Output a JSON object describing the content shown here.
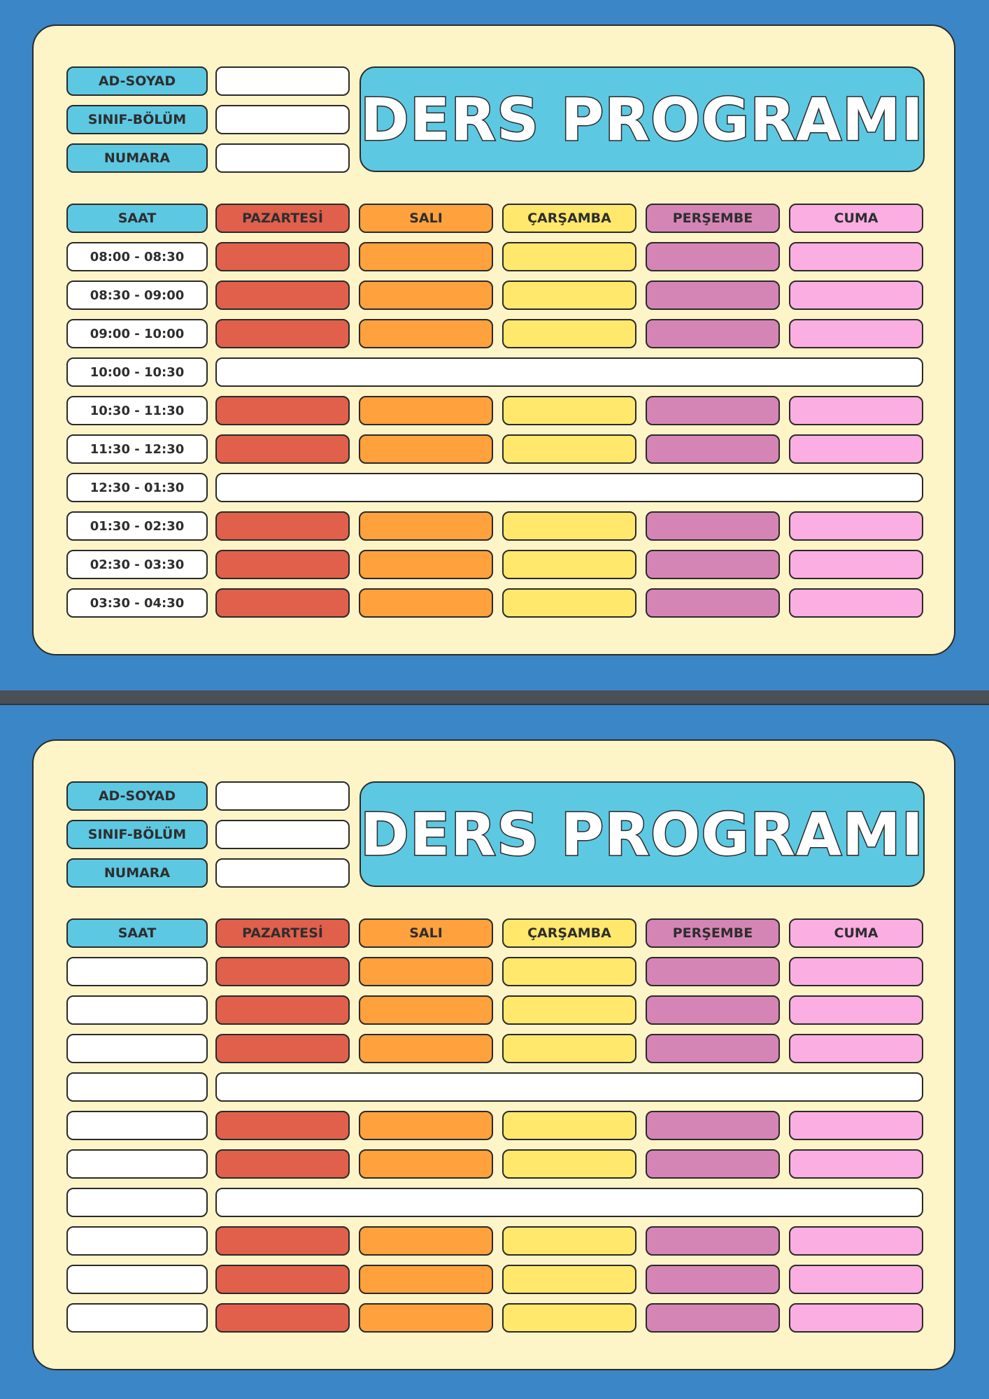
{
  "title": "DERS PROGRAMI",
  "info_labels": [
    "AD-SOYAD",
    "SINIF-BÖLÜM",
    "NUMARA"
  ],
  "time_header": "SAAT",
  "days": [
    "PAZARTESİ",
    "SALI",
    "ÇARŞAMBA",
    "PERŞEMBE",
    "CUMA"
  ],
  "colors": {
    "background": "#3a86c6",
    "card": "#fdf4c7",
    "label": "#5dc8e2",
    "days": [
      "#e0604c",
      "#ffa13d",
      "#ffe86b",
      "#d585b5",
      "#fbaee2"
    ],
    "break": "#ffffff"
  },
  "rows": [
    {
      "type": "lesson"
    },
    {
      "type": "lesson"
    },
    {
      "type": "lesson"
    },
    {
      "type": "break"
    },
    {
      "type": "lesson"
    },
    {
      "type": "lesson"
    },
    {
      "type": "break"
    },
    {
      "type": "lesson"
    },
    {
      "type": "lesson"
    },
    {
      "type": "lesson"
    }
  ],
  "schedules": [
    {
      "times": [
        "08:00 - 08:30",
        "08:30 - 09:00",
        "09:00 - 10:00",
        "10:00 - 10:30",
        "10:30 - 11:30",
        "11:30 - 12:30",
        "12:30 - 01:30",
        "01:30 - 02:30",
        "02:30 - 03:30",
        "03:30 - 04:30"
      ]
    },
    {
      "times": [
        "",
        "",
        "",
        "",
        "",
        "",
        "",
        "",
        "",
        ""
      ]
    }
  ]
}
